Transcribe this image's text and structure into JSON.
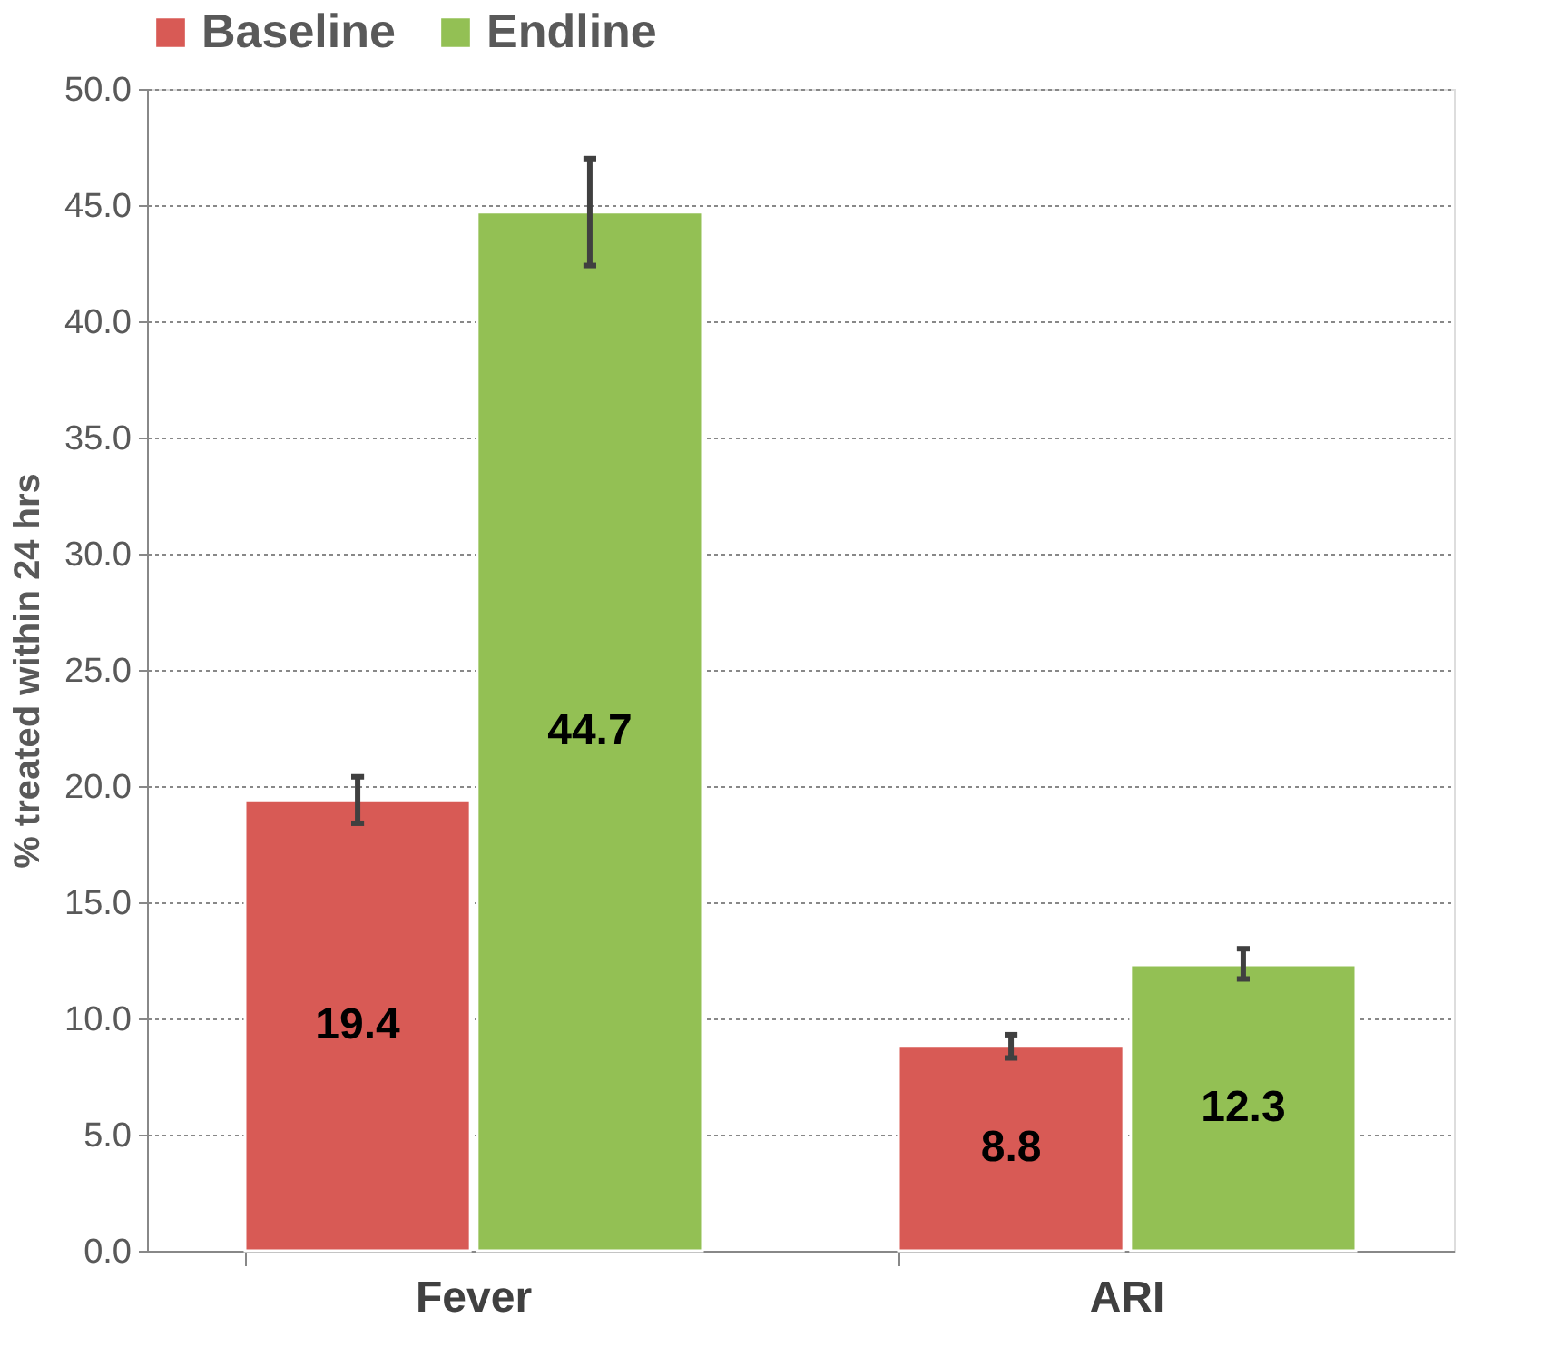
{
  "chart_data": {
    "type": "bar",
    "ylabel": "% treated within 24 hrs",
    "categories": [
      "Fever",
      "ARI"
    ],
    "series": [
      {
        "name": "Baseline",
        "color": "#d85a55",
        "values": [
          19.4,
          8.8
        ],
        "errors": [
          [
            18.4,
            20.4
          ],
          [
            8.3,
            9.3
          ]
        ]
      },
      {
        "name": "Endline",
        "color": "#93c054",
        "values": [
          44.7,
          12.3
        ],
        "errors": [
          [
            42.4,
            47.0
          ],
          [
            11.7,
            13.0
          ]
        ]
      }
    ],
    "ylim": [
      0,
      50
    ],
    "yticks": [
      {
        "value": 0,
        "label": "0.0"
      },
      {
        "value": 5,
        "label": "5.0"
      },
      {
        "value": 10,
        "label": "10.0"
      },
      {
        "value": 15,
        "label": "15.0"
      },
      {
        "value": 20,
        "label": "20.0"
      },
      {
        "value": 25,
        "label": "25.0"
      },
      {
        "value": 30,
        "label": "30.0"
      },
      {
        "value": 35,
        "label": "35.0"
      },
      {
        "value": 40,
        "label": "40.0"
      },
      {
        "value": 45,
        "label": "45.0"
      },
      {
        "value": 50,
        "label": "50.0"
      }
    ],
    "grid": "y",
    "legend": "top",
    "data_labels": true
  }
}
